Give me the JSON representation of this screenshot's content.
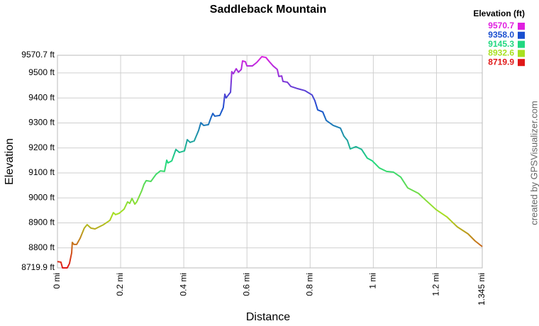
{
  "chart_data": {
    "type": "line",
    "title": "Saddleback Mountain",
    "x_label": "Distance",
    "y_label": "Elevation",
    "credit": "created by GPSVisualizer.com",
    "xlim": [
      0,
      1.345
    ],
    "xticks": [
      {
        "value": 0,
        "label": "0 mi"
      },
      {
        "value": 0.2,
        "label": "0.2 mi"
      },
      {
        "value": 0.4,
        "label": "0.4 mi"
      },
      {
        "value": 0.6,
        "label": "0.6 mi"
      },
      {
        "value": 0.8,
        "label": "0.8 mi"
      },
      {
        "value": 1,
        "label": "1 mi"
      },
      {
        "value": 1.2,
        "label": "1.2 mi"
      },
      {
        "value": 1.345,
        "label": "1.345 mi"
      }
    ],
    "ylim": [
      8719.9,
      9570.7
    ],
    "yticks": [
      {
        "value": 8719.9,
        "label": "8719.9 ft"
      },
      {
        "value": 8800,
        "label": "8800 ft"
      },
      {
        "value": 8900,
        "label": "8900 ft"
      },
      {
        "value": 9000,
        "label": "9000 ft"
      },
      {
        "value": 9100,
        "label": "9100 ft"
      },
      {
        "value": 9200,
        "label": "9200 ft"
      },
      {
        "value": 9300,
        "label": "9300 ft"
      },
      {
        "value": 9400,
        "label": "9400 ft"
      },
      {
        "value": 9500,
        "label": "9500 ft"
      },
      {
        "value": 9570.7,
        "label": "9570.7 ft"
      }
    ],
    "grid": true,
    "legend": {
      "title": "Elevation (ft)",
      "values": [
        9570.7,
        9358.0,
        9145.3,
        8932.6,
        8719.9
      ],
      "value_labels": [
        "9570.7",
        "9358.0",
        "9145.3",
        "8932.6",
        "8719.9"
      ],
      "colors": [
        "#e020e0",
        "#1a4fd0",
        "#20d880",
        "#a8e020",
        "#e01818"
      ]
    },
    "x": [
      0,
      0.011,
      0.016,
      0.031,
      0.038,
      0.045,
      0.047,
      0.052,
      0.061,
      0.072,
      0.085,
      0.094,
      0.106,
      0.119,
      0.146,
      0.166,
      0.177,
      0.184,
      0.195,
      0.211,
      0.222,
      0.229,
      0.236,
      0.245,
      0.251,
      0.26,
      0.267,
      0.274,
      0.281,
      0.296,
      0.312,
      0.326,
      0.339,
      0.346,
      0.35,
      0.362,
      0.375,
      0.386,
      0.402,
      0.411,
      0.42,
      0.433,
      0.447,
      0.454,
      0.463,
      0.478,
      0.487,
      0.492,
      0.498,
      0.514,
      0.525,
      0.53,
      0.534,
      0.548,
      0.552,
      0.557,
      0.566,
      0.573,
      0.582,
      0.586,
      0.595,
      0.6,
      0.617,
      0.631,
      0.647,
      0.66,
      0.671,
      0.683,
      0.696,
      0.701,
      0.71,
      0.714,
      0.728,
      0.739,
      0.761,
      0.784,
      0.806,
      0.815,
      0.824,
      0.84,
      0.851,
      0.873,
      0.896,
      0.907,
      0.918,
      0.927,
      0.945,
      0.963,
      0.981,
      0.997,
      1.019,
      1.042,
      1.064,
      1.087,
      1.109,
      1.143,
      1.165,
      1.199,
      1.233,
      1.266,
      1.3,
      1.322,
      1.345
    ],
    "series": [
      {
        "values": [
          8745,
          8743,
          8720,
          8720,
          8737,
          8780,
          8822,
          8814,
          8814,
          8839,
          8879,
          8893,
          8879,
          8876,
          8893,
          8910,
          8941,
          8933,
          8938,
          8955,
          8984,
          8978,
          8998,
          8975,
          8984,
          9009,
          9029,
          9054,
          9069,
          9066,
          9094,
          9108,
          9106,
          9151,
          9140,
          9148,
          9194,
          9182,
          9188,
          9233,
          9222,
          9228,
          9270,
          9301,
          9290,
          9293,
          9324,
          9338,
          9327,
          9330,
          9361,
          9415,
          9400,
          9423,
          9505,
          9497,
          9517,
          9503,
          9514,
          9548,
          9545,
          9528,
          9528,
          9542,
          9565,
          9562,
          9545,
          9528,
          9514,
          9486,
          9488,
          9466,
          9463,
          9446,
          9437,
          9429,
          9412,
          9389,
          9352,
          9344,
          9310,
          9290,
          9279,
          9247,
          9230,
          9196,
          9205,
          9194,
          9159,
          9148,
          9120,
          9106,
          9103,
          9083,
          9040,
          9018,
          8992,
          8953,
          8924,
          8884,
          8856,
          8828,
          8805
        ]
      }
    ]
  }
}
